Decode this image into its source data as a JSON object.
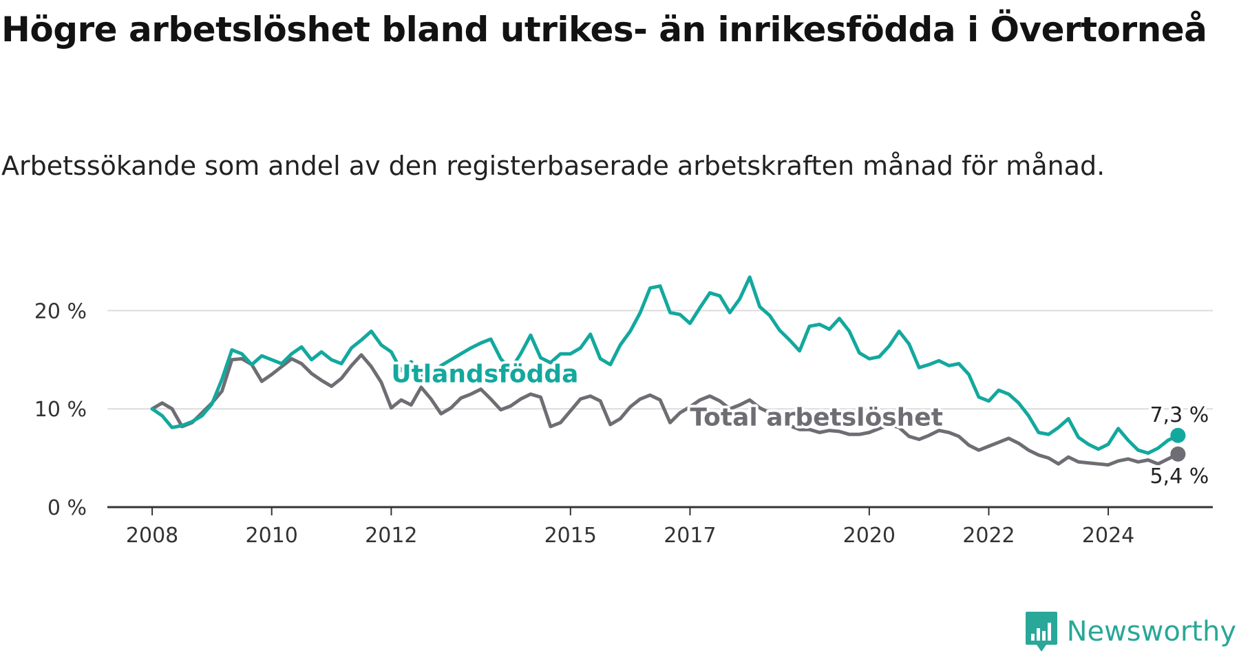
{
  "title": "Högre arbetslöshet bland utrikes- än inrikesfödda i Övertorneå",
  "subtitle": "Arbetssökande som andel av den registerbaserade arbetskraften månad för månad.",
  "brand": {
    "name": "Newsworthy",
    "color": "#29a798",
    "icon": "bar-chart-badge-icon"
  },
  "chart_data": {
    "type": "line",
    "title": "Högre arbetslöshet bland utrikes- än inrikesfödda i Övertorneå",
    "subtitle": "Arbetssökande som andel av den registerbaserade arbetskraften månad för månad.",
    "y_ticks": [
      0,
      10,
      20
    ],
    "y_tick_labels": [
      "0 %",
      "10 %",
      "20 %"
    ],
    "x_ticks": [
      2008,
      2010,
      2012,
      2015,
      2017,
      2020,
      2022,
      2024
    ],
    "x_tick_labels": [
      "2008",
      "2010",
      "2012",
      "2015",
      "2017",
      "2020",
      "2022",
      "2024"
    ],
    "ylim": [
      0,
      25
    ],
    "xlim": [
      "2007-04",
      "2025-10"
    ],
    "grid": true,
    "series": [
      {
        "name": "Utlandsfödda",
        "color": "#13a89e",
        "end_label": "7,3 %",
        "points": [
          [
            "2008-01",
            10.0
          ],
          [
            "2008-03",
            9.3
          ],
          [
            "2008-05",
            8.1
          ],
          [
            "2008-07",
            8.3
          ],
          [
            "2008-09",
            8.7
          ],
          [
            "2008-11",
            9.3
          ],
          [
            "2009-01",
            10.5
          ],
          [
            "2009-03",
            13.0
          ],
          [
            "2009-05",
            16.0
          ],
          [
            "2009-07",
            15.6
          ],
          [
            "2009-09",
            14.5
          ],
          [
            "2009-11",
            15.4
          ],
          [
            "2010-01",
            15.0
          ],
          [
            "2010-03",
            14.6
          ],
          [
            "2010-05",
            15.6
          ],
          [
            "2010-07",
            16.3
          ],
          [
            "2010-09",
            15.0
          ],
          [
            "2010-11",
            15.8
          ],
          [
            "2011-01",
            15.0
          ],
          [
            "2011-03",
            14.6
          ],
          [
            "2011-05",
            16.2
          ],
          [
            "2011-07",
            17.0
          ],
          [
            "2011-09",
            17.9
          ],
          [
            "2011-11",
            16.5
          ],
          [
            "2012-01",
            15.8
          ],
          [
            "2012-03",
            13.9
          ],
          [
            "2012-05",
            14.8
          ],
          [
            "2012-07",
            13.5
          ],
          [
            "2012-09",
            12.8
          ],
          [
            "2012-11",
            14.4
          ],
          [
            "2013-01",
            15.0
          ],
          [
            "2013-03",
            15.6
          ],
          [
            "2013-05",
            16.2
          ],
          [
            "2013-07",
            16.7
          ],
          [
            "2013-09",
            17.1
          ],
          [
            "2013-11",
            15.1
          ],
          [
            "2014-01",
            14.0
          ],
          [
            "2014-03",
            15.6
          ],
          [
            "2014-05",
            17.5
          ],
          [
            "2014-07",
            15.2
          ],
          [
            "2014-09",
            14.7
          ],
          [
            "2014-11",
            15.6
          ],
          [
            "2015-01",
            15.6
          ],
          [
            "2015-03",
            16.2
          ],
          [
            "2015-05",
            17.6
          ],
          [
            "2015-07",
            15.1
          ],
          [
            "2015-09",
            14.5
          ],
          [
            "2015-11",
            16.5
          ],
          [
            "2016-01",
            17.9
          ],
          [
            "2016-03",
            19.8
          ],
          [
            "2016-05",
            22.3
          ],
          [
            "2016-07",
            22.5
          ],
          [
            "2016-09",
            19.8
          ],
          [
            "2016-11",
            19.6
          ],
          [
            "2017-01",
            18.7
          ],
          [
            "2017-03",
            20.3
          ],
          [
            "2017-05",
            21.8
          ],
          [
            "2017-07",
            21.5
          ],
          [
            "2017-09",
            19.8
          ],
          [
            "2017-11",
            21.2
          ],
          [
            "2018-01",
            23.4
          ],
          [
            "2018-03",
            20.4
          ],
          [
            "2018-05",
            19.5
          ],
          [
            "2018-07",
            18.0
          ],
          [
            "2018-09",
            17.0
          ],
          [
            "2018-11",
            15.9
          ],
          [
            "2019-01",
            18.4
          ],
          [
            "2019-03",
            18.6
          ],
          [
            "2019-05",
            18.1
          ],
          [
            "2019-07",
            19.2
          ],
          [
            "2019-09",
            17.9
          ],
          [
            "2019-11",
            15.7
          ],
          [
            "2020-01",
            15.1
          ],
          [
            "2020-03",
            15.3
          ],
          [
            "2020-05",
            16.4
          ],
          [
            "2020-07",
            17.9
          ],
          [
            "2020-09",
            16.6
          ],
          [
            "2020-11",
            14.2
          ],
          [
            "2021-01",
            14.5
          ],
          [
            "2021-03",
            14.9
          ],
          [
            "2021-05",
            14.4
          ],
          [
            "2021-07",
            14.6
          ],
          [
            "2021-09",
            13.5
          ],
          [
            "2021-11",
            11.2
          ],
          [
            "2022-01",
            10.8
          ],
          [
            "2022-03",
            11.9
          ],
          [
            "2022-05",
            11.5
          ],
          [
            "2022-07",
            10.6
          ],
          [
            "2022-09",
            9.3
          ],
          [
            "2022-11",
            7.6
          ],
          [
            "2023-01",
            7.4
          ],
          [
            "2023-03",
            8.1
          ],
          [
            "2023-05",
            9.0
          ],
          [
            "2023-07",
            7.1
          ],
          [
            "2023-09",
            6.4
          ],
          [
            "2023-11",
            5.9
          ],
          [
            "2024-01",
            6.4
          ],
          [
            "2024-03",
            8.0
          ],
          [
            "2024-05",
            6.8
          ],
          [
            "2024-07",
            5.8
          ],
          [
            "2024-09",
            5.5
          ],
          [
            "2024-11",
            6.0
          ],
          [
            "2025-01",
            6.8
          ],
          [
            "2025-03",
            7.3
          ]
        ]
      },
      {
        "name": "Total arbetslöshet",
        "color": "#6e6d73",
        "end_label": "5,4 %",
        "points": [
          [
            "2008-01",
            10.0
          ],
          [
            "2008-03",
            10.6
          ],
          [
            "2008-05",
            10.0
          ],
          [
            "2008-07",
            8.2
          ],
          [
            "2008-09",
            8.6
          ],
          [
            "2008-11",
            9.6
          ],
          [
            "2009-01",
            10.6
          ],
          [
            "2009-03",
            11.8
          ],
          [
            "2009-05",
            15.0
          ],
          [
            "2009-07",
            15.1
          ],
          [
            "2009-09",
            14.5
          ],
          [
            "2009-11",
            12.8
          ],
          [
            "2010-01",
            13.5
          ],
          [
            "2010-03",
            14.3
          ],
          [
            "2010-05",
            15.1
          ],
          [
            "2010-07",
            14.6
          ],
          [
            "2010-09",
            13.6
          ],
          [
            "2010-11",
            12.9
          ],
          [
            "2011-01",
            12.3
          ],
          [
            "2011-03",
            13.1
          ],
          [
            "2011-05",
            14.4
          ],
          [
            "2011-07",
            15.5
          ],
          [
            "2011-09",
            14.3
          ],
          [
            "2011-11",
            12.7
          ],
          [
            "2012-01",
            10.1
          ],
          [
            "2012-03",
            10.9
          ],
          [
            "2012-05",
            10.4
          ],
          [
            "2012-07",
            12.2
          ],
          [
            "2012-09",
            11.0
          ],
          [
            "2012-11",
            9.5
          ],
          [
            "2013-01",
            10.1
          ],
          [
            "2013-03",
            11.1
          ],
          [
            "2013-05",
            11.5
          ],
          [
            "2013-07",
            12.0
          ],
          [
            "2013-09",
            11.0
          ],
          [
            "2013-11",
            9.9
          ],
          [
            "2014-01",
            10.3
          ],
          [
            "2014-03",
            11.0
          ],
          [
            "2014-05",
            11.5
          ],
          [
            "2014-07",
            11.2
          ],
          [
            "2014-09",
            8.2
          ],
          [
            "2014-11",
            8.6
          ],
          [
            "2015-01",
            9.8
          ],
          [
            "2015-03",
            11.0
          ],
          [
            "2015-05",
            11.3
          ],
          [
            "2015-07",
            10.8
          ],
          [
            "2015-09",
            8.4
          ],
          [
            "2015-11",
            9.0
          ],
          [
            "2016-01",
            10.2
          ],
          [
            "2016-03",
            11.0
          ],
          [
            "2016-05",
            11.4
          ],
          [
            "2016-07",
            10.9
          ],
          [
            "2016-09",
            8.6
          ],
          [
            "2016-11",
            9.6
          ],
          [
            "2017-01",
            10.2
          ],
          [
            "2017-03",
            10.9
          ],
          [
            "2017-05",
            11.3
          ],
          [
            "2017-07",
            10.8
          ],
          [
            "2017-09",
            10.0
          ],
          [
            "2017-11",
            10.4
          ],
          [
            "2018-01",
            10.9
          ],
          [
            "2018-03",
            10.1
          ],
          [
            "2018-05",
            9.6
          ],
          [
            "2018-07",
            8.9
          ],
          [
            "2018-09",
            8.3
          ],
          [
            "2018-11",
            7.9
          ],
          [
            "2019-01",
            7.9
          ],
          [
            "2019-03",
            7.6
          ],
          [
            "2019-05",
            7.8
          ],
          [
            "2019-07",
            7.7
          ],
          [
            "2019-09",
            7.4
          ],
          [
            "2019-11",
            7.4
          ],
          [
            "2020-01",
            7.6
          ],
          [
            "2020-03",
            8.0
          ],
          [
            "2020-05",
            8.4
          ],
          [
            "2020-07",
            8.1
          ],
          [
            "2020-09",
            7.2
          ],
          [
            "2020-11",
            6.9
          ],
          [
            "2021-01",
            7.3
          ],
          [
            "2021-03",
            7.8
          ],
          [
            "2021-05",
            7.6
          ],
          [
            "2021-07",
            7.2
          ],
          [
            "2021-09",
            6.3
          ],
          [
            "2021-11",
            5.8
          ],
          [
            "2022-01",
            6.2
          ],
          [
            "2022-03",
            6.6
          ],
          [
            "2022-05",
            7.0
          ],
          [
            "2022-07",
            6.5
          ],
          [
            "2022-09",
            5.8
          ],
          [
            "2022-11",
            5.3
          ],
          [
            "2023-01",
            5.0
          ],
          [
            "2023-03",
            4.4
          ],
          [
            "2023-05",
            5.1
          ],
          [
            "2023-07",
            4.6
          ],
          [
            "2023-09",
            4.5
          ],
          [
            "2023-11",
            4.4
          ],
          [
            "2024-01",
            4.3
          ],
          [
            "2024-03",
            4.7
          ],
          [
            "2024-05",
            4.9
          ],
          [
            "2024-07",
            4.6
          ],
          [
            "2024-09",
            4.8
          ],
          [
            "2024-11",
            4.4
          ],
          [
            "2025-01",
            4.9
          ],
          [
            "2025-03",
            5.4
          ]
        ]
      }
    ]
  }
}
